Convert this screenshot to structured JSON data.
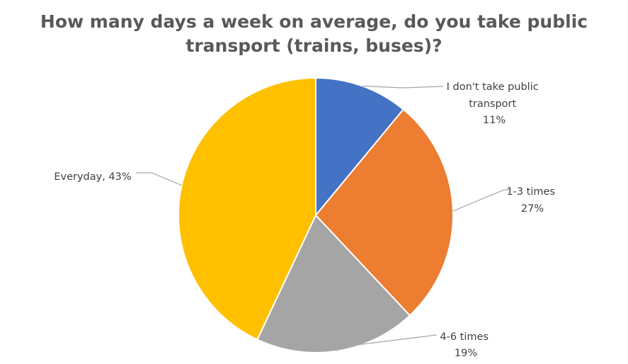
{
  "chart_data": {
    "type": "pie",
    "title_lines": [
      "How many days a week on average, do you take public",
      "transport (trains, buses)?"
    ],
    "categories": [
      "I don't take public transport",
      "1-3 times",
      "4-6 times",
      "Everyday"
    ],
    "values": [
      11,
      27,
      19,
      43
    ],
    "unit": "%",
    "data_labels": [
      [
        "I don't take public",
        "transport",
        "11%"
      ],
      [
        "1-3 times",
        "27%"
      ],
      [
        "4-6 times",
        "19%"
      ],
      [
        "Everyday, 43%"
      ]
    ],
    "colors": [
      "#4472c4",
      "#ed7d31",
      "#a5a5a5",
      "#ffc000"
    ],
    "start_angle_deg": 0,
    "direction": "clockwise",
    "legend": "none"
  }
}
